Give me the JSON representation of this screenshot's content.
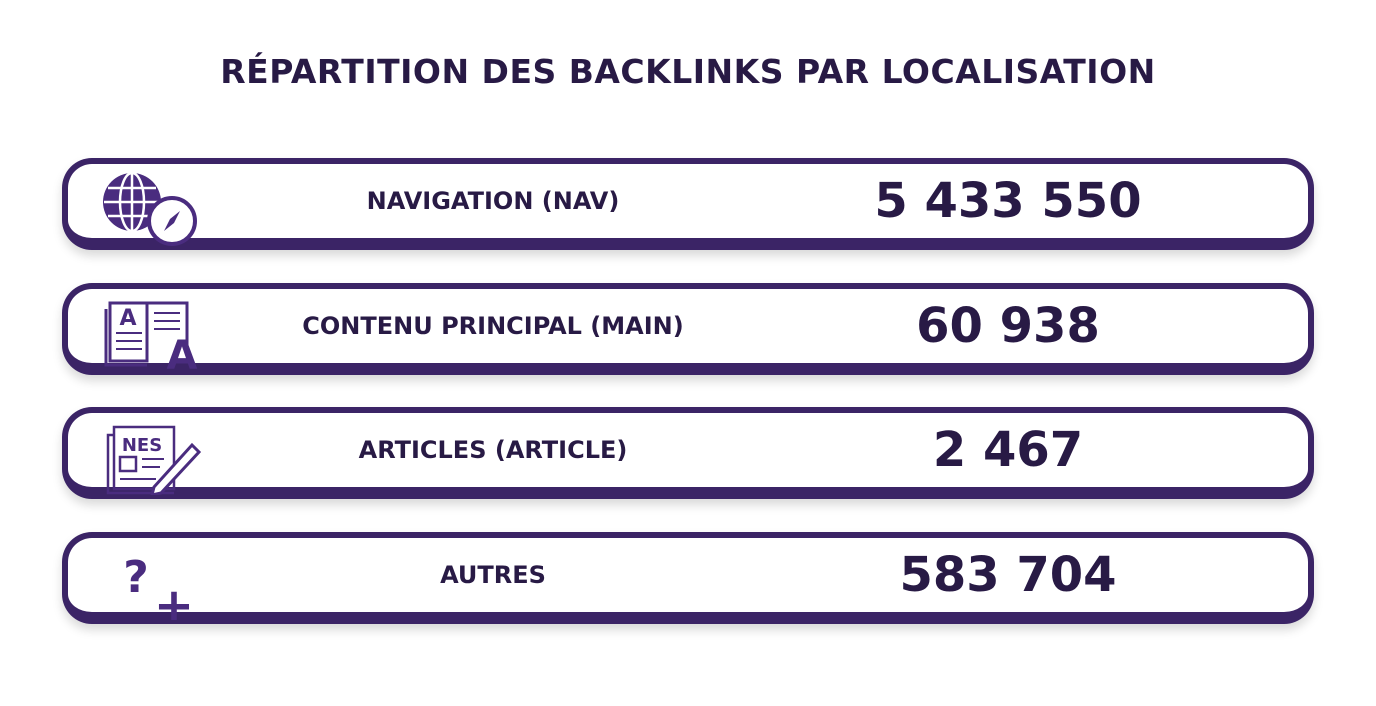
{
  "header": {
    "title": "RÉPARTITION DES BACKLINKS PAR LOCALISATION"
  },
  "rows": [
    {
      "label": "NAVIGATION (NAV)",
      "value": "5 433 550"
    },
    {
      "label": "CONTENU PRINCIPAL (MAIN)",
      "value": "60 938",
      "icon_labels": [
        "A",
        "A"
      ]
    },
    {
      "label": "ARTICLES (ARTICLE)",
      "value": "2 467",
      "icon_labels": [
        "NES"
      ]
    },
    {
      "label": "AUTRES",
      "value": "583 704",
      "icon_labels": [
        "?",
        "+"
      ]
    }
  ]
}
